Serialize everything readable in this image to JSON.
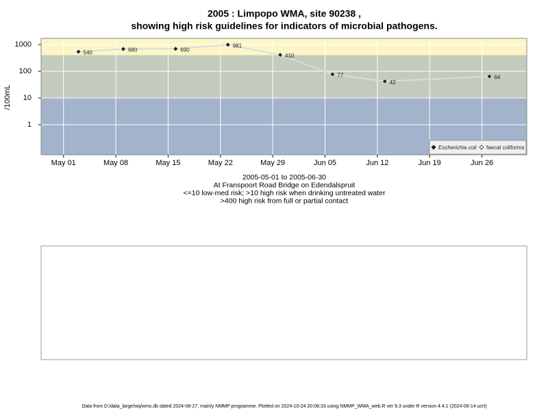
{
  "chart_data": {
    "type": "line",
    "title": "2005 : Limpopo WMA, site 90238 ,",
    "subtitle": "showing high risk guidelines for indicators of microbial pathogens.",
    "y_label": "/100mL",
    "notes": [
      "2005-05-01 to 2005-06-30",
      "At Franspoort Road Bridge on Edendalspruit",
      "<=10 low-med risk; >10 high risk when drinking untreated water",
      ">400 high risk from full or partial contact"
    ],
    "footer": "Data from D:/data_large/wq/wms.db dated 2024-08-27, mainly NMMP programme. Plotted on 2024-10-24 20:08:33 using NMMP_WMA_web.R ver 9.3 under R version 4.4.1 (2024-06-14 ucrt)",
    "x": [
      "2005-05-03",
      "2005-05-09",
      "2005-05-16",
      "2005-05-23",
      "2005-05-30",
      "2005-06-06",
      "2005-06-13",
      "2005-06-27"
    ],
    "series": [
      {
        "name": "Escherichia coli",
        "color": "#222222",
        "line_color": "#dcdcdc",
        "values": [
          540,
          680,
          690,
          981,
          410,
          77,
          42,
          64
        ]
      },
      {
        "name": "faecal coliforms",
        "color": "#222222",
        "values": [
          null,
          null,
          null,
          null,
          null,
          null,
          null,
          null
        ]
      }
    ],
    "log_y": true,
    "ylim": [
      0.075,
      1700
    ],
    "yticks": [
      1,
      10,
      100,
      1000
    ],
    "xlim": [
      "2005-04-28",
      "2005-07-02"
    ],
    "xticks": [
      {
        "value": "2005-05-01",
        "label": "May 01"
      },
      {
        "value": "2005-05-08",
        "label": "May 08"
      },
      {
        "value": "2005-05-15",
        "label": "May 15"
      },
      {
        "value": "2005-05-22",
        "label": "May 22"
      },
      {
        "value": "2005-05-29",
        "label": "May 29"
      },
      {
        "value": "2005-06-05",
        "label": "Jun 05"
      },
      {
        "value": "2005-06-12",
        "label": "Jun 12"
      },
      {
        "value": "2005-06-19",
        "label": "Jun 19"
      },
      {
        "value": "2005-06-26",
        "label": "Jun 26"
      }
    ],
    "bands": [
      {
        "min": 400,
        "color": "#fcf6c6"
      },
      {
        "min": 10,
        "max": 400,
        "color": "#c3cbbd"
      },
      {
        "max": 10,
        "color": "#a2b3cb"
      }
    ],
    "grid": true,
    "legend": "bottom-right"
  }
}
